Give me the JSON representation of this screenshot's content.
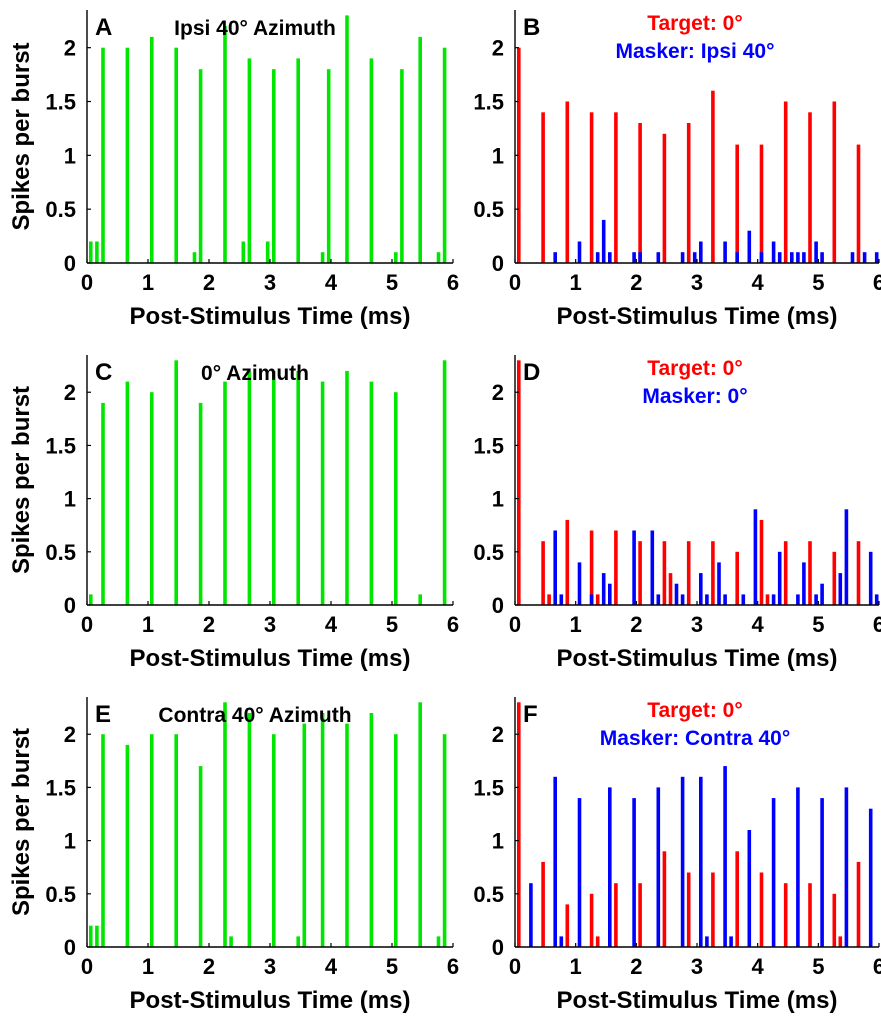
{
  "figure": {
    "background": "#ffffff"
  },
  "colors": {
    "green": "#00e600",
    "red": "#ff0000",
    "blue": "#0000ff",
    "axis": "#000000"
  },
  "chart_data": [
    {
      "panel": "A",
      "type": "bar",
      "title": "Ipsi 40° Azimuth",
      "xlabel": "Post-Stimulus Time (ms)",
      "ylabel": "Spikes per burst",
      "xlim": [
        0,
        6
      ],
      "ylim": [
        0,
        2.35
      ],
      "xticks": [
        "0",
        "1",
        "2",
        "3",
        "4",
        "5",
        "6"
      ],
      "yticks": [
        "0",
        "0.5",
        "1",
        "1.5",
        "2"
      ],
      "series": [
        {
          "color": "#00e600",
          "x": [
            0.0,
            0.1,
            0.2,
            0.6,
            1.0,
            1.4,
            1.7,
            1.8,
            2.2,
            2.5,
            2.6,
            2.9,
            3.0,
            3.4,
            3.8,
            3.9,
            4.2,
            4.6,
            5.0,
            5.1,
            5.4,
            5.7,
            5.8
          ],
          "values": [
            0.2,
            0.2,
            2.0,
            2.0,
            2.1,
            2.0,
            0.1,
            1.8,
            2.2,
            0.2,
            1.9,
            0.2,
            1.8,
            1.9,
            0.1,
            1.8,
            2.3,
            1.9,
            0.1,
            1.8,
            2.1,
            0.1,
            2.0
          ]
        }
      ]
    },
    {
      "panel": "B",
      "type": "bar",
      "title_lines": [
        {
          "text": "Target: 0°",
          "color": "#ff0000"
        },
        {
          "text": "Masker: Ipsi 40°",
          "color": "#0000ff"
        }
      ],
      "xlabel": "Post-Stimulus Time (ms)",
      "ylabel": "",
      "xlim": [
        0,
        6
      ],
      "ylim": [
        0,
        2.35
      ],
      "xticks": [
        "0",
        "1",
        "2",
        "3",
        "4",
        "5",
        "6"
      ],
      "yticks": [
        "0",
        "0.5",
        "1",
        "1.5",
        "2"
      ],
      "series": [
        {
          "color": "#ff0000",
          "x": [
            0.0,
            0.4,
            0.8,
            1.2,
            1.6,
            2.0,
            2.4,
            2.8,
            3.2,
            3.6,
            4.0,
            4.4,
            4.8,
            5.2,
            5.6
          ],
          "values": [
            2.0,
            1.4,
            1.5,
            1.4,
            1.4,
            1.3,
            1.2,
            1.3,
            1.6,
            1.1,
            1.1,
            1.5,
            1.4,
            1.5,
            1.1
          ]
        },
        {
          "color": "#0000ff",
          "x": [
            0.6,
            1.0,
            1.3,
            1.4,
            1.5,
            1.9,
            2.0,
            2.3,
            2.7,
            2.9,
            3.0,
            3.4,
            3.6,
            3.8,
            4.0,
            4.2,
            4.3,
            4.5,
            4.6,
            4.7,
            4.9,
            5.0,
            5.5,
            5.7,
            5.9
          ],
          "values": [
            0.1,
            0.2,
            0.1,
            0.4,
            0.1,
            0.1,
            0.1,
            0.1,
            0.1,
            0.1,
            0.2,
            0.2,
            0.1,
            0.3,
            0.1,
            0.2,
            0.1,
            0.1,
            0.1,
            0.1,
            0.2,
            0.1,
            0.1,
            0.1,
            0.1
          ]
        }
      ]
    },
    {
      "panel": "C",
      "type": "bar",
      "title": "0° Azimuth",
      "xlabel": "Post-Stimulus Time (ms)",
      "ylabel": "Spikes per burst",
      "xlim": [
        0,
        6
      ],
      "ylim": [
        0,
        2.35
      ],
      "xticks": [
        "0",
        "1",
        "2",
        "3",
        "4",
        "5",
        "6"
      ],
      "yticks": [
        "0",
        "0.5",
        "1",
        "1.5",
        "2"
      ],
      "series": [
        {
          "color": "#00e600",
          "x": [
            0.0,
            0.2,
            0.6,
            1.0,
            1.4,
            1.8,
            2.2,
            2.6,
            3.0,
            3.4,
            3.8,
            4.2,
            4.6,
            5.0,
            5.4,
            5.8
          ],
          "values": [
            0.1,
            1.9,
            2.1,
            2.0,
            2.3,
            1.9,
            2.1,
            2.2,
            2.2,
            2.2,
            2.1,
            2.2,
            2.1,
            2.0,
            0.1,
            2.3
          ]
        }
      ]
    },
    {
      "panel": "D",
      "type": "bar",
      "title_lines": [
        {
          "text": "Target: 0°",
          "color": "#ff0000"
        },
        {
          "text": "Masker: 0°",
          "color": "#0000ff"
        }
      ],
      "xlabel": "Post-Stimulus Time (ms)",
      "ylabel": "",
      "xlim": [
        0,
        6
      ],
      "ylim": [
        0,
        2.35
      ],
      "xticks": [
        "0",
        "1",
        "2",
        "3",
        "4",
        "5",
        "6"
      ],
      "yticks": [
        "0",
        "0.5",
        "1",
        "1.5",
        "2"
      ],
      "series": [
        {
          "color": "#ff0000",
          "x": [
            0.0,
            0.4,
            0.5,
            0.8,
            1.2,
            1.3,
            1.6,
            2.0,
            2.4,
            2.5,
            2.8,
            3.2,
            3.6,
            4.0,
            4.1,
            4.4,
            4.8,
            5.2,
            5.6
          ],
          "values": [
            2.3,
            0.6,
            0.1,
            0.8,
            0.7,
            0.1,
            0.7,
            0.6,
            0.6,
            0.3,
            0.6,
            0.6,
            0.5,
            0.8,
            0.1,
            0.6,
            0.6,
            0.5,
            0.6
          ]
        },
        {
          "color": "#0000ff",
          "x": [
            0.6,
            0.7,
            1.0,
            1.2,
            1.4,
            1.5,
            1.9,
            2.2,
            2.3,
            2.6,
            2.7,
            3.0,
            3.1,
            3.3,
            3.4,
            3.7,
            3.9,
            4.2,
            4.3,
            4.6,
            4.7,
            4.9,
            5.0,
            5.3,
            5.4,
            5.8,
            5.9
          ],
          "values": [
            0.7,
            0.1,
            0.4,
            0.1,
            0.3,
            0.2,
            0.7,
            0.7,
            0.1,
            0.2,
            0.1,
            0.3,
            0.1,
            0.4,
            0.1,
            0.1,
            0.9,
            0.1,
            0.5,
            0.1,
            0.4,
            0.1,
            0.2,
            0.3,
            0.9,
            0.5,
            0.1
          ]
        }
      ]
    },
    {
      "panel": "E",
      "type": "bar",
      "title": "Contra 40° Azimuth",
      "xlabel": "Post-Stimulus Time (ms)",
      "ylabel": "Spikes per burst",
      "xlim": [
        0,
        6
      ],
      "ylim": [
        0,
        2.35
      ],
      "xticks": [
        "0",
        "1",
        "2",
        "3",
        "4",
        "5",
        "6"
      ],
      "yticks": [
        "0",
        "0.5",
        "1",
        "1.5",
        "2"
      ],
      "series": [
        {
          "color": "#00e600",
          "x": [
            0.0,
            0.1,
            0.2,
            0.6,
            1.0,
            1.4,
            1.8,
            2.2,
            2.3,
            2.6,
            3.0,
            3.4,
            3.5,
            3.8,
            4.2,
            4.6,
            5.0,
            5.4,
            5.7,
            5.8
          ],
          "values": [
            0.2,
            0.2,
            2.0,
            1.9,
            2.0,
            2.0,
            1.7,
            2.3,
            0.1,
            2.2,
            2.0,
            0.1,
            2.1,
            2.2,
            2.1,
            2.2,
            2.0,
            2.3,
            0.1,
            2.0
          ]
        }
      ]
    },
    {
      "panel": "F",
      "type": "bar",
      "title_lines": [
        {
          "text": "Target: 0°",
          "color": "#ff0000"
        },
        {
          "text": "Masker: Contra 40°",
          "color": "#0000ff"
        }
      ],
      "xlabel": "Post-Stimulus Time (ms)",
      "ylabel": "",
      "xlim": [
        0,
        6
      ],
      "ylim": [
        0,
        2.35
      ],
      "xticks": [
        "0",
        "1",
        "2",
        "3",
        "4",
        "5",
        "6"
      ],
      "yticks": [
        "0",
        "0.5",
        "1",
        "1.5",
        "2"
      ],
      "series": [
        {
          "color": "#ff0000",
          "x": [
            0.0,
            0.4,
            0.8,
            1.2,
            1.3,
            1.6,
            2.0,
            2.4,
            2.8,
            3.2,
            3.6,
            4.0,
            4.4,
            4.8,
            5.2,
            5.3,
            5.6
          ],
          "values": [
            2.3,
            0.8,
            0.4,
            0.5,
            0.1,
            0.6,
            0.6,
            0.9,
            0.7,
            0.7,
            0.9,
            0.7,
            0.6,
            0.6,
            0.5,
            0.1,
            0.8
          ]
        },
        {
          "color": "#0000ff",
          "x": [
            0.2,
            0.6,
            0.7,
            1.0,
            1.5,
            1.9,
            2.3,
            2.7,
            3.0,
            3.1,
            3.4,
            3.5,
            3.8,
            4.2,
            4.6,
            5.0,
            5.4,
            5.8
          ],
          "values": [
            0.6,
            1.6,
            0.1,
            1.4,
            1.5,
            1.4,
            1.5,
            1.6,
            1.6,
            0.1,
            1.7,
            0.1,
            1.1,
            1.4,
            1.5,
            1.4,
            1.5,
            1.3
          ]
        }
      ]
    }
  ]
}
